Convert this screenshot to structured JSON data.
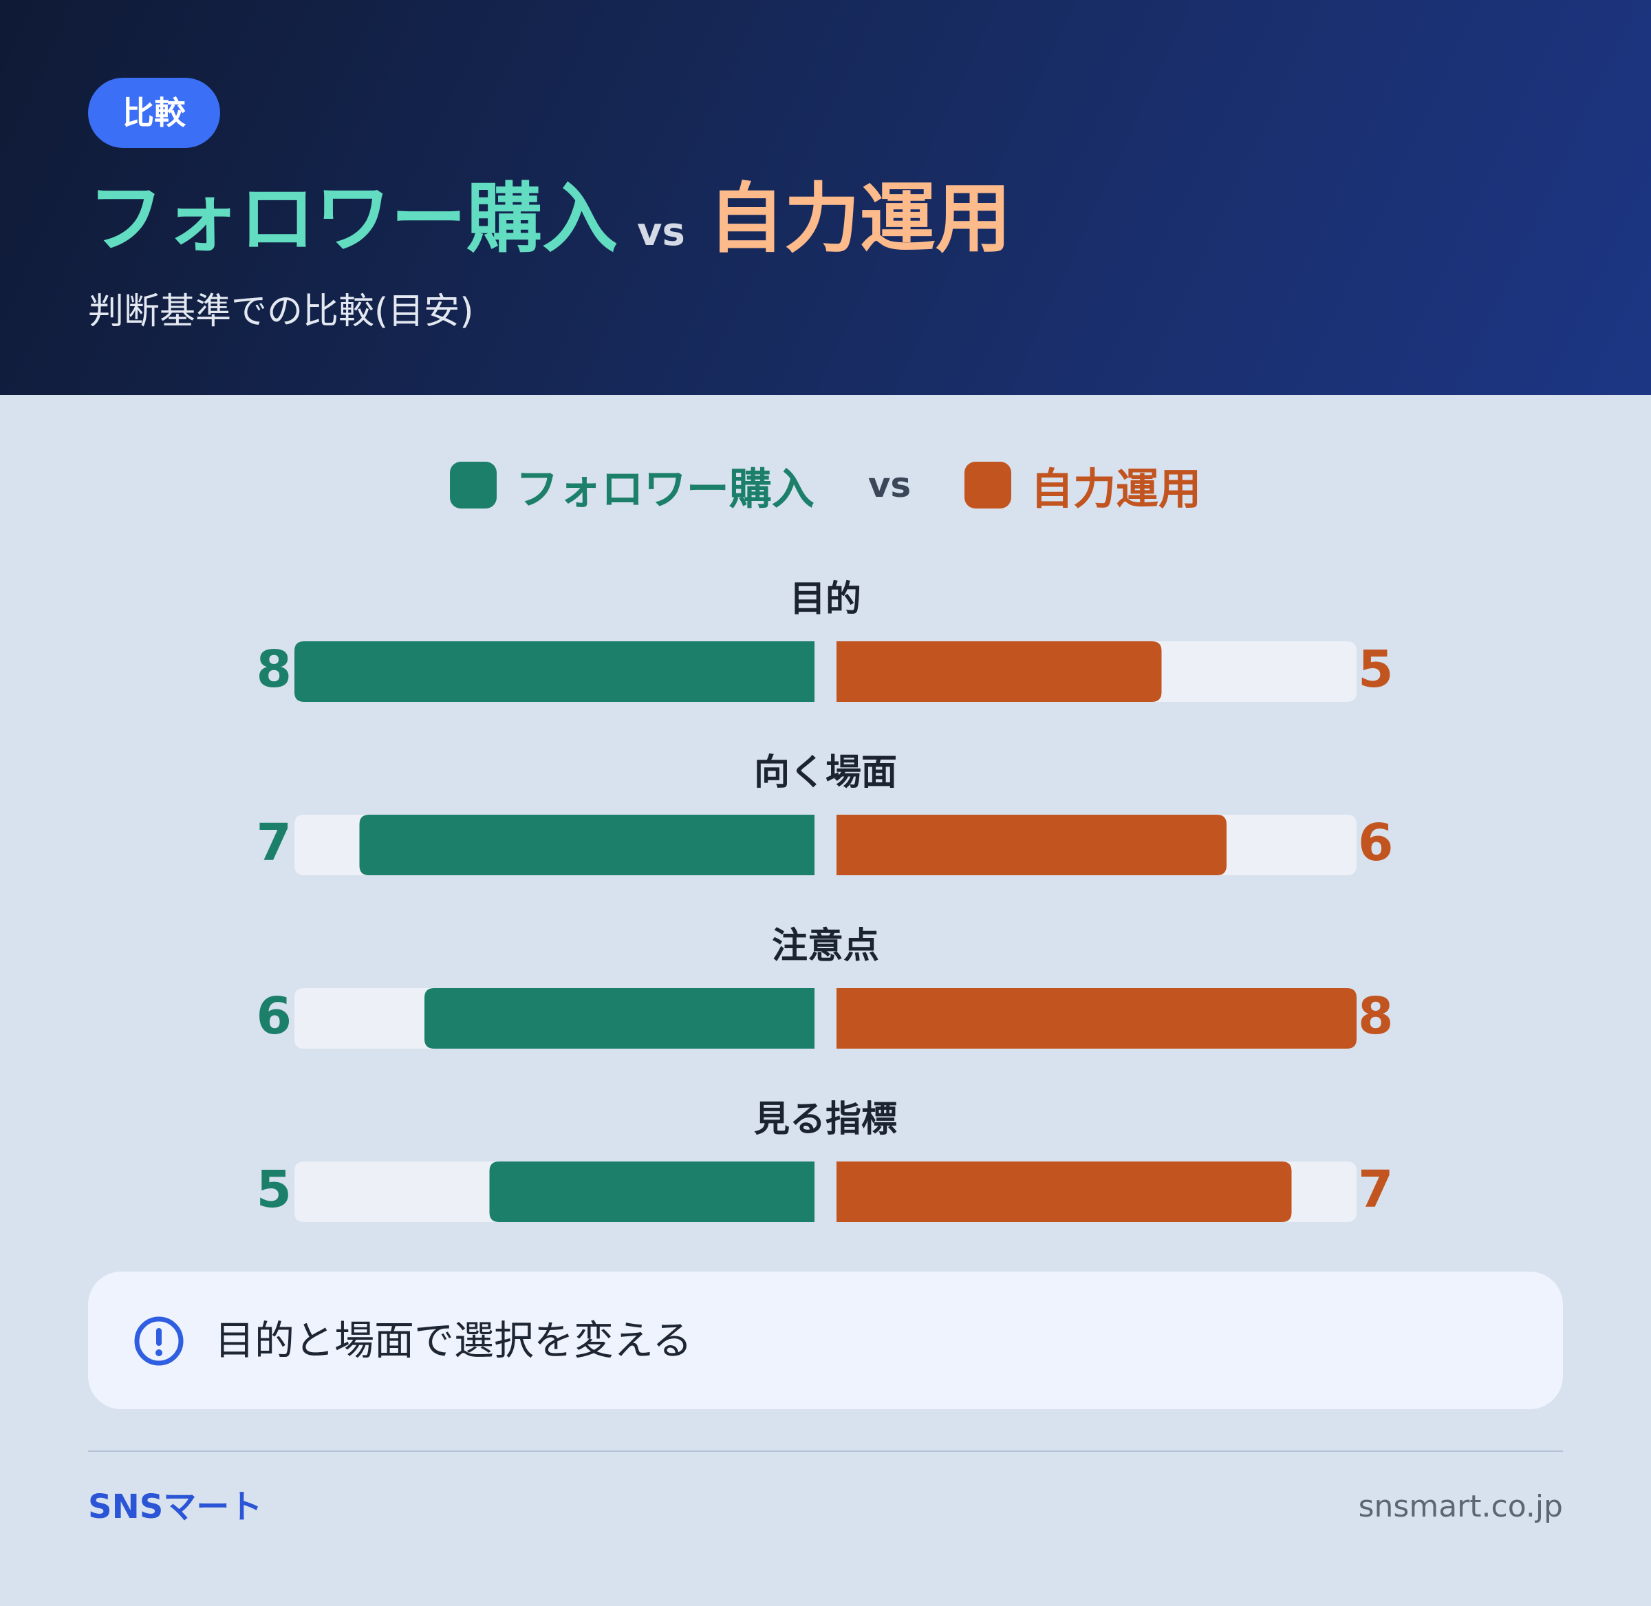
{
  "header": {
    "badge": "比較",
    "title_a": "フォロワー購入",
    "title_vs": "vs",
    "title_b": "自力運用",
    "subtitle": "判断基準での比較(目安)"
  },
  "legend": {
    "a": "フォロワー購入",
    "vs": "vs",
    "b": "自力運用"
  },
  "chart_data": {
    "type": "bar",
    "orientation": "horizontal-diverging",
    "categories": [
      "目的",
      "向く場面",
      "注意点",
      "見る指標"
    ],
    "series": [
      {
        "name": "フォロワー購入",
        "values": [
          8,
          7,
          6,
          5
        ],
        "color": "#1b7f6a"
      },
      {
        "name": "自力運用",
        "values": [
          5,
          6,
          8,
          7
        ],
        "color": "#c2541f"
      }
    ],
    "xlim": [
      0,
      8
    ],
    "legend_position": "top-center",
    "grid": false
  },
  "note": {
    "icon": "info-circle-icon",
    "text": "目的と場面で選択を変える"
  },
  "footer": {
    "brand": "SNSマート",
    "site": "snsmart.co.jp"
  },
  "colors": {
    "series_a": "#1b7f6a",
    "series_b": "#c2541f",
    "track": "#edf1f7",
    "accent": "#3b6ff5"
  }
}
